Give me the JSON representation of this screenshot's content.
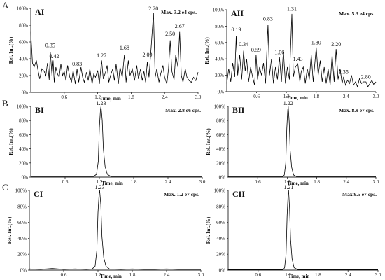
{
  "section_labels": [
    "A",
    "B",
    "C"
  ],
  "chart_data": [
    {
      "id": "AI",
      "type": "line",
      "title": "AI",
      "max_label": "Max. 3.2 e4 cps.",
      "xlabel": "Time, min",
      "ylabel": "Rel. Int.(%)",
      "xlim": [
        0,
        3.0
      ],
      "ylim": [
        0,
        100
      ],
      "xticks": [
        "0.6",
        "1.2",
        "1.8",
        "2.4",
        "3.0"
      ],
      "yticks": [
        "0%",
        "20%",
        "40%",
        "60%",
        "80%",
        "100%"
      ],
      "peak_labels": [
        {
          "x": 0.35,
          "y": 52,
          "text": "0.35"
        },
        {
          "x": 0.42,
          "y": 39,
          "text": "0.42"
        },
        {
          "x": 0.83,
          "y": 30,
          "text": "0.83"
        },
        {
          "x": 1.27,
          "y": 40,
          "text": "1.27"
        },
        {
          "x": 1.68,
          "y": 49,
          "text": "1.68"
        },
        {
          "x": 2.09,
          "y": 41,
          "text": "2.09"
        },
        {
          "x": 2.2,
          "y": 96,
          "text": "2.20"
        },
        {
          "x": 2.5,
          "y": 66,
          "text": "2.50"
        },
        {
          "x": 2.67,
          "y": 75,
          "text": "2.67"
        }
      ],
      "x": [
        0,
        0.03,
        0.06,
        0.1,
        0.13,
        0.16,
        0.2,
        0.24,
        0.27,
        0.3,
        0.33,
        0.35,
        0.38,
        0.4,
        0.42,
        0.45,
        0.48,
        0.51,
        0.54,
        0.57,
        0.6,
        0.63,
        0.66,
        0.7,
        0.73,
        0.76,
        0.8,
        0.83,
        0.86,
        0.9,
        0.93,
        0.96,
        1.0,
        1.03,
        1.06,
        1.1,
        1.13,
        1.16,
        1.2,
        1.23,
        1.27,
        1.3,
        1.34,
        1.37,
        1.4,
        1.43,
        1.47,
        1.5,
        1.53,
        1.57,
        1.6,
        1.64,
        1.68,
        1.71,
        1.75,
        1.78,
        1.82,
        1.86,
        1.9,
        1.93,
        1.97,
        2.0,
        2.03,
        2.06,
        2.09,
        2.12,
        2.16,
        2.2,
        2.23,
        2.26,
        2.3,
        2.33,
        2.37,
        2.4,
        2.44,
        2.47,
        2.5,
        2.53,
        2.57,
        2.6,
        2.64,
        2.67,
        2.7,
        2.73,
        2.77,
        2.8,
        2.84,
        2.88,
        2.92,
        2.96,
        3.0
      ],
      "y": [
        72,
        35,
        30,
        38,
        26,
        16,
        28,
        25,
        20,
        35,
        15,
        48,
        20,
        38,
        12,
        30,
        22,
        18,
        34,
        20,
        25,
        14,
        32,
        18,
        12,
        26,
        10,
        28,
        12,
        30,
        18,
        12,
        24,
        14,
        28,
        10,
        22,
        18,
        26,
        10,
        38,
        16,
        24,
        32,
        12,
        20,
        28,
        14,
        34,
        10,
        30,
        18,
        45,
        12,
        38,
        20,
        28,
        14,
        32,
        16,
        28,
        14,
        25,
        12,
        36,
        18,
        55,
        95,
        18,
        28,
        12,
        22,
        32,
        18,
        10,
        28,
        62,
        25,
        15,
        45,
        30,
        72,
        20,
        12,
        28,
        18,
        14,
        12,
        18,
        14,
        24
      ]
    },
    {
      "id": "AII",
      "type": "line",
      "title": "AII",
      "max_label": "Max. 5.3 e4 cps.",
      "xlabel": "Time, min",
      "ylabel": "Rel. Int.(%)",
      "xlim": [
        0,
        3.0
      ],
      "ylim": [
        0,
        100
      ],
      "xticks": [
        "0.6",
        "1.2",
        "1.8",
        "2.4",
        "3.0"
      ],
      "yticks": [
        "0%",
        "20%",
        "40%",
        "60%",
        "80%",
        "100%"
      ],
      "peak_labels": [
        {
          "x": 0.19,
          "y": 72,
          "text": "0.19"
        },
        {
          "x": 0.34,
          "y": 54,
          "text": "0.34"
        },
        {
          "x": 0.59,
          "y": 47,
          "text": "0.59"
        },
        {
          "x": 0.83,
          "y": 85,
          "text": "0.83"
        },
        {
          "x": 1.06,
          "y": 44,
          "text": "1.06"
        },
        {
          "x": 1.31,
          "y": 97,
          "text": "1.31"
        },
        {
          "x": 1.43,
          "y": 36,
          "text": "1.43"
        },
        {
          "x": 1.8,
          "y": 56,
          "text": "1.80"
        },
        {
          "x": 2.2,
          "y": 54,
          "text": "2.20"
        },
        {
          "x": 2.35,
          "y": 20,
          "text": "2.35"
        },
        {
          "x": 2.8,
          "y": 14,
          "text": "2.80"
        }
      ],
      "x": [
        0,
        0.04,
        0.08,
        0.12,
        0.16,
        0.19,
        0.22,
        0.26,
        0.3,
        0.34,
        0.37,
        0.4,
        0.44,
        0.48,
        0.52,
        0.56,
        0.59,
        0.62,
        0.66,
        0.7,
        0.74,
        0.78,
        0.83,
        0.86,
        0.9,
        0.94,
        0.98,
        1.02,
        1.06,
        1.1,
        1.14,
        1.18,
        1.22,
        1.26,
        1.31,
        1.34,
        1.38,
        1.43,
        1.47,
        1.5,
        1.54,
        1.58,
        1.62,
        1.66,
        1.7,
        1.74,
        1.8,
        1.84,
        1.88,
        1.92,
        1.96,
        2.0,
        2.04,
        2.08,
        2.12,
        2.16,
        2.2,
        2.24,
        2.28,
        2.32,
        2.35,
        2.39,
        2.43,
        2.47,
        2.51,
        2.55,
        2.59,
        2.63,
        2.67,
        2.71,
        2.75,
        2.8,
        2.84,
        2.88,
        2.92,
        2.96,
        3.0
      ],
      "y": [
        10,
        28,
        12,
        35,
        18,
        68,
        20,
        45,
        15,
        50,
        25,
        40,
        12,
        30,
        18,
        8,
        45,
        15,
        30,
        20,
        35,
        10,
        82,
        20,
        40,
        10,
        30,
        15,
        42,
        12,
        50,
        10,
        30,
        15,
        95,
        18,
        30,
        34,
        12,
        25,
        30,
        10,
        28,
        15,
        45,
        12,
        54,
        20,
        38,
        12,
        30,
        10,
        28,
        8,
        45,
        12,
        52,
        15,
        28,
        10,
        18,
        8,
        14,
        10,
        20,
        8,
        12,
        6,
        16,
        10,
        12,
        12,
        6,
        10,
        14,
        8,
        12
      ]
    },
    {
      "id": "BI",
      "type": "line",
      "title": "BI",
      "max_label": "Max. 2.8 e6 cps.",
      "xlabel": "Time, min",
      "ylabel": "Rel. Int.(%)",
      "xlim": [
        0,
        3.0
      ],
      "ylim": [
        0,
        100
      ],
      "xticks": [
        "0.6",
        "1.2",
        "1.8",
        "2.4",
        "3.0"
      ],
      "yticks": [
        "0%",
        "20%",
        "40%",
        "60%",
        "80%",
        "100%"
      ],
      "peak_labels": [
        {
          "x": 1.23,
          "y": 100,
          "text": "1.23"
        }
      ],
      "x": [
        0,
        0.3,
        0.6,
        0.9,
        1.1,
        1.15,
        1.18,
        1.2,
        1.22,
        1.23,
        1.25,
        1.27,
        1.3,
        1.34,
        1.4,
        1.6,
        2.0,
        2.4,
        3.0
      ],
      "y": [
        1,
        1,
        1,
        1,
        1,
        4,
        22,
        70,
        96,
        100,
        80,
        40,
        15,
        4,
        1,
        1,
        1,
        1,
        1
      ]
    },
    {
      "id": "BII",
      "type": "line",
      "title": "BII",
      "max_label": "Max. 8.9 e7 cps.",
      "xlabel": "Time, min",
      "ylabel": "Rel. Int.(%)",
      "xlim": [
        0,
        3.0
      ],
      "ylim": [
        0,
        100
      ],
      "xticks": [
        "0.6",
        "1.2",
        "1.8",
        "2.4",
        "3.0"
      ],
      "yticks": [
        "0%",
        "20%",
        "40%",
        "60%",
        "80%",
        "100%"
      ],
      "peak_labels": [
        {
          "x": 1.22,
          "y": 100,
          "text": "1.22"
        }
      ],
      "x": [
        0,
        0.3,
        0.6,
        0.9,
        1.1,
        1.14,
        1.17,
        1.19,
        1.21,
        1.22,
        1.24,
        1.26,
        1.29,
        1.33,
        1.4,
        1.6,
        2.0,
        2.4,
        3.0
      ],
      "y": [
        0.5,
        0.5,
        0.5,
        0.5,
        0.5,
        3,
        20,
        68,
        95,
        100,
        78,
        38,
        14,
        3,
        0.5,
        0.5,
        0.5,
        0.5,
        0.5
      ]
    },
    {
      "id": "CI",
      "type": "line",
      "title": "CI",
      "max_label": "Max. 1.2 e7 cps.",
      "xlabel": "Time, min",
      "ylabel": "Rel. Int.(%)",
      "xlim": [
        0,
        3.0
      ],
      "ylim": [
        0,
        100
      ],
      "xticks": [
        "0.6",
        "1.2",
        "1.8",
        "2.4",
        "3.0"
      ],
      "yticks": [
        "0%",
        "20%",
        "40%",
        "60%",
        "80%",
        "100%"
      ],
      "peak_labels": [
        {
          "x": 1.23,
          "y": 100,
          "text": "1.23"
        }
      ],
      "x": [
        0,
        0.2,
        0.4,
        0.6,
        0.8,
        1.0,
        1.1,
        1.15,
        1.18,
        1.2,
        1.22,
        1.23,
        1.25,
        1.27,
        1.3,
        1.34,
        1.4,
        1.6,
        1.8,
        2.0,
        2.2,
        2.4,
        2.6,
        2.8,
        3.0
      ],
      "y": [
        1.5,
        1,
        2,
        1,
        1.5,
        1,
        1.5,
        5,
        25,
        72,
        96,
        100,
        82,
        42,
        16,
        5,
        1.5,
        1,
        1.5,
        1,
        1,
        1.5,
        1,
        1,
        1
      ]
    },
    {
      "id": "CII",
      "type": "line",
      "title": "CII",
      "max_label": "Max.9.5 e7 cps.",
      "xlabel": "Time, min",
      "ylabel": "Rel. Int.(%)",
      "xlim": [
        0,
        3.0
      ],
      "ylim": [
        0,
        100
      ],
      "xticks": [
        "0.6",
        "1.2",
        "1.8",
        "2.4",
        "3.0"
      ],
      "yticks": [
        "0%",
        "20%",
        "40%",
        "60%",
        "80%",
        "100%"
      ],
      "peak_labels": [
        {
          "x": 1.21,
          "y": 100,
          "text": "1.21"
        }
      ],
      "x": [
        0,
        0.3,
        0.6,
        0.9,
        1.1,
        1.13,
        1.16,
        1.18,
        1.2,
        1.21,
        1.23,
        1.25,
        1.28,
        1.32,
        1.4,
        1.6,
        2.0,
        2.4,
        3.0
      ],
      "y": [
        0.5,
        0.5,
        0.5,
        0.5,
        0.5,
        3,
        20,
        68,
        95,
        100,
        78,
        38,
        14,
        3,
        0.5,
        0.5,
        0.5,
        0.5,
        0.5
      ]
    }
  ]
}
